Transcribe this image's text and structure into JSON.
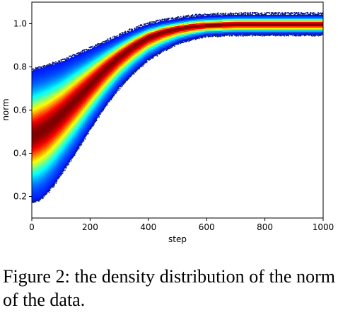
{
  "caption": "Figure 2:  the density distribution of the norm of the data.",
  "chart_data": {
    "type": "density-band",
    "xlabel": "step",
    "ylabel": "norm",
    "xlim": [
      0,
      1000
    ],
    "ylim": [
      0.1,
      1.1
    ],
    "xticks": [
      0,
      200,
      400,
      600,
      800,
      1000
    ],
    "yticks": [
      0.2,
      0.4,
      0.6,
      0.8,
      1.0
    ],
    "xtick_labels": [
      "0",
      "200",
      "400",
      "600",
      "800",
      "1000"
    ],
    "ytick_labels": [
      "0.2",
      "0.4",
      "0.6",
      "0.8",
      "1.0"
    ],
    "colormap": "jet",
    "colormap_stops": [
      "#00007f",
      "#0000ff",
      "#007fff",
      "#00ffff",
      "#7fff7f",
      "#ffff00",
      "#ff7f00",
      "#ff0000",
      "#7f0000"
    ],
    "outlier_color": "#0b1a8c",
    "series": [
      {
        "step": [
          0,
          25,
          50,
          75,
          100,
          150,
          200,
          250,
          300,
          350,
          400,
          450,
          500,
          550,
          600,
          700,
          800,
          900,
          1000
        ],
        "center": [
          0.48,
          0.5,
          0.52,
          0.55,
          0.58,
          0.65,
          0.72,
          0.79,
          0.85,
          0.9,
          0.94,
          0.965,
          0.98,
          0.99,
          0.995,
          1.0,
          1.0,
          1.0,
          1.0
        ],
        "lower": [
          0.18,
          0.19,
          0.22,
          0.26,
          0.31,
          0.41,
          0.52,
          0.62,
          0.71,
          0.78,
          0.84,
          0.88,
          0.915,
          0.935,
          0.95,
          0.955,
          0.955,
          0.955,
          0.955
        ],
        "upper": [
          0.78,
          0.79,
          0.8,
          0.81,
          0.82,
          0.85,
          0.88,
          0.91,
          0.94,
          0.97,
          0.995,
          1.01,
          1.02,
          1.03,
          1.035,
          1.04,
          1.04,
          1.04,
          1.04
        ]
      }
    ]
  }
}
